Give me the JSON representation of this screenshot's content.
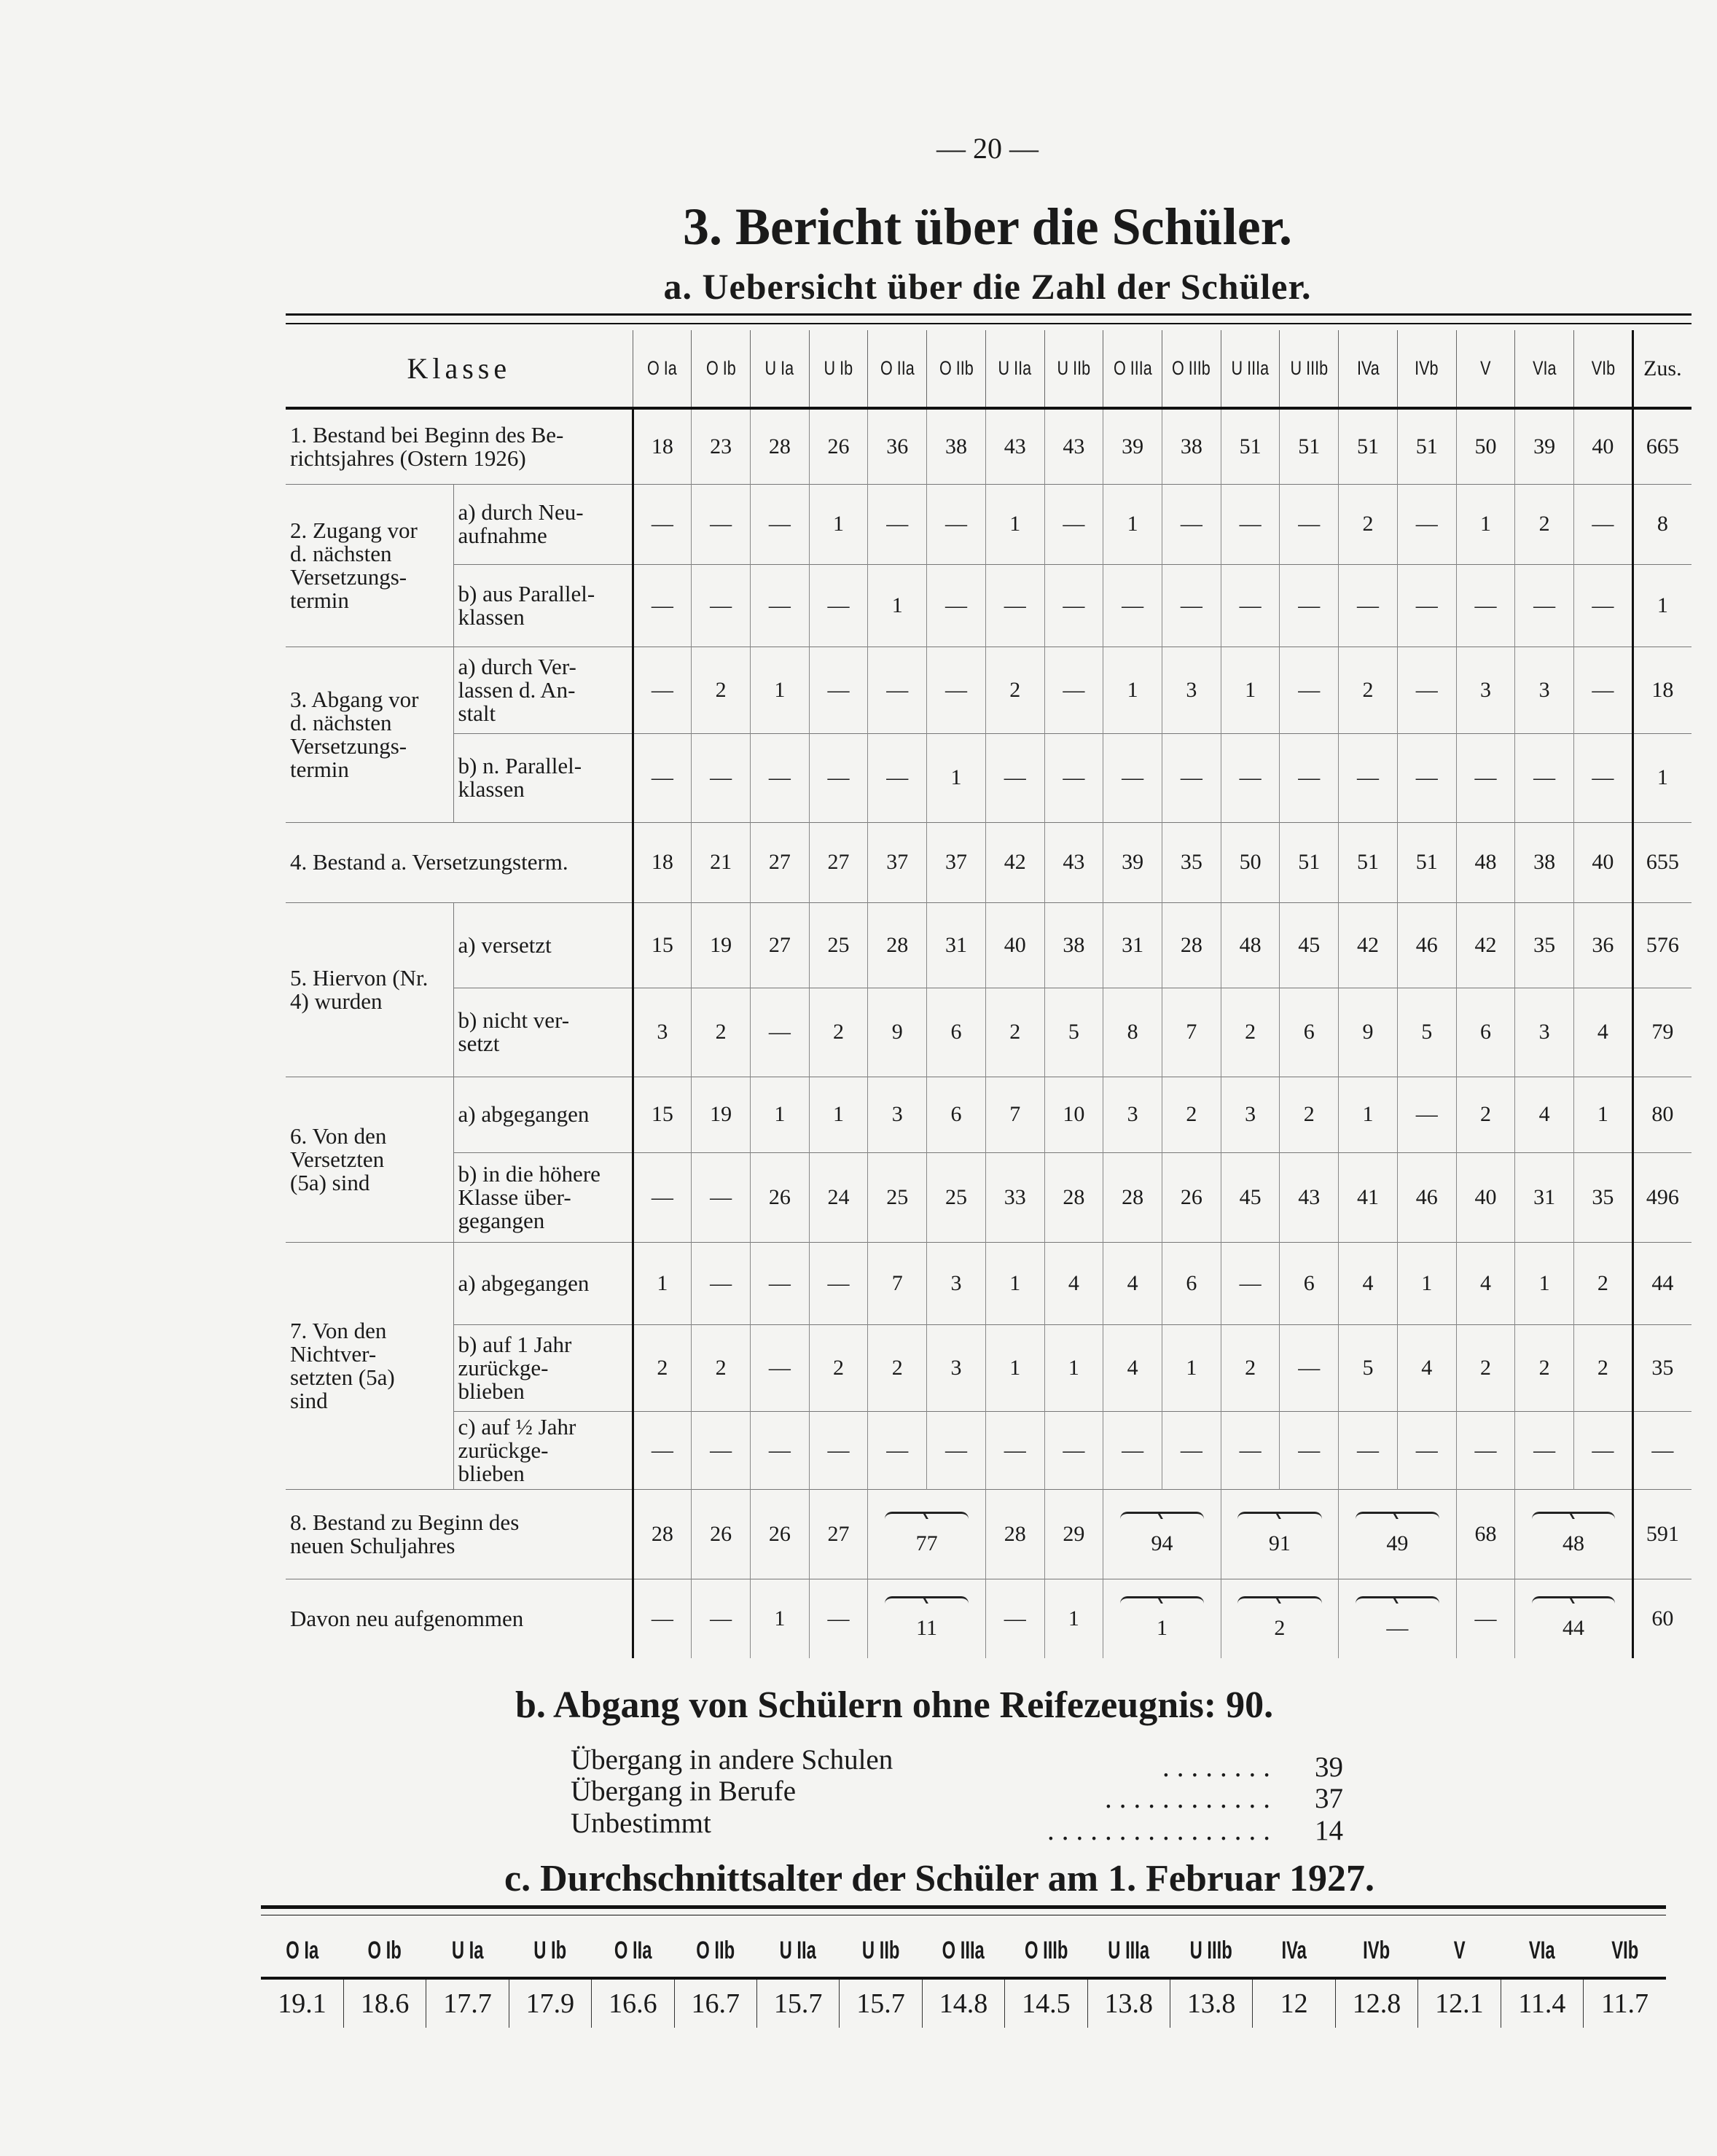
{
  "page_number": "— 20 —",
  "title": "3. Bericht über die Schüler.",
  "subtitle": "a. Uebersicht über die Zahl der Schüler.",
  "table_a": {
    "klasse_label": "Klasse",
    "classes": [
      "O Ia",
      "O Ib",
      "U Ia",
      "U Ib",
      "O IIa",
      "O IIb",
      "U IIa",
      "U IIb",
      "O IIIa",
      "O IIIb",
      "U IIIa",
      "U IIIb",
      "IVa",
      "IVb",
      "V",
      "VIa",
      "VIb"
    ],
    "total_label": "Zus.",
    "groups": [
      {
        "label": "1. Bestand bei Beginn des Be-\nrichtsjahres (Ostern 1926)",
        "rows": [
          {
            "sub": null,
            "values": [
              "18",
              "23",
              "28",
              "26",
              "36",
              "38",
              "43",
              "43",
              "39",
              "38",
              "51",
              "51",
              "51",
              "51",
              "50",
              "39",
              "40"
            ],
            "total": "665"
          }
        ]
      },
      {
        "label": "2. Zugang vor\nd. nächsten\nVersetzungs-\ntermin",
        "rows": [
          {
            "sub": "a) durch Neu-\naufnahme",
            "values": [
              "—",
              "—",
              "—",
              "1",
              "—",
              "—",
              "1",
              "—",
              "1",
              "—",
              "—",
              "—",
              "2",
              "—",
              "1",
              "2",
              "—"
            ],
            "total": "8"
          },
          {
            "sub": "b) aus Parallel-\nklassen",
            "values": [
              "—",
              "—",
              "—",
              "—",
              "1",
              "—",
              "—",
              "—",
              "—",
              "—",
              "—",
              "—",
              "—",
              "—",
              "—",
              "—",
              "—"
            ],
            "total": "1"
          }
        ]
      },
      {
        "label": "3. Abgang vor\nd. nächsten\nVersetzungs-\ntermin",
        "rows": [
          {
            "sub": "a) durch Ver-\nlassen d. An-\nstalt",
            "values": [
              "—",
              "2",
              "1",
              "—",
              "—",
              "—",
              "2",
              "—",
              "1",
              "3",
              "1",
              "—",
              "2",
              "—",
              "3",
              "3",
              "—"
            ],
            "total": "18"
          },
          {
            "sub": "b) n. Parallel-\nklassen",
            "values": [
              "—",
              "—",
              "—",
              "—",
              "—",
              "1",
              "—",
              "—",
              "—",
              "—",
              "—",
              "—",
              "—",
              "—",
              "—",
              "—",
              "—"
            ],
            "total": "1"
          }
        ]
      },
      {
        "label": "4. Bestand a. Versetzungsterm.",
        "rows": [
          {
            "sub": null,
            "values": [
              "18",
              "21",
              "27",
              "27",
              "37",
              "37",
              "42",
              "43",
              "39",
              "35",
              "50",
              "51",
              "51",
              "51",
              "48",
              "38",
              "40"
            ],
            "total": "655"
          }
        ]
      },
      {
        "label": "5. Hiervon (Nr.\n4) wurden",
        "rows": [
          {
            "sub": "a) versetzt",
            "values": [
              "15",
              "19",
              "27",
              "25",
              "28",
              "31",
              "40",
              "38",
              "31",
              "28",
              "48",
              "45",
              "42",
              "46",
              "42",
              "35",
              "36"
            ],
            "total": "576"
          },
          {
            "sub": "b) nicht ver-\nsetzt",
            "values": [
              "3",
              "2",
              "—",
              "2",
              "9",
              "6",
              "2",
              "5",
              "8",
              "7",
              "2",
              "6",
              "9",
              "5",
              "6",
              "3",
              "4"
            ],
            "total": "79"
          }
        ]
      },
      {
        "label": "6. Von den\nVersetzten\n(5a) sind",
        "rows": [
          {
            "sub": "a) abgegangen",
            "values": [
              "15",
              "19",
              "1",
              "1",
              "3",
              "6",
              "7",
              "10",
              "3",
              "2",
              "3",
              "2",
              "1",
              "—",
              "2",
              "4",
              "1"
            ],
            "total": "80"
          },
          {
            "sub": "b) in die höhere\nKlasse über-\ngegangen",
            "values": [
              "—",
              "—",
              "26",
              "24",
              "25",
              "25",
              "33",
              "28",
              "28",
              "26",
              "45",
              "43",
              "41",
              "46",
              "40",
              "31",
              "35"
            ],
            "total": "496"
          }
        ]
      },
      {
        "label": "7. Von den\nNichtver-\nsetzten (5a)\nsind",
        "rows": [
          {
            "sub": "a) abgegangen",
            "values": [
              "1",
              "—",
              "—",
              "—",
              "7",
              "3",
              "1",
              "4",
              "4",
              "6",
              "—",
              "6",
              "4",
              "1",
              "4",
              "1",
              "2"
            ],
            "total": "44"
          },
          {
            "sub": "b) auf 1 Jahr\nzurückge-\nblieben",
            "values": [
              "2",
              "2",
              "—",
              "2",
              "2",
              "3",
              "1",
              "1",
              "4",
              "1",
              "2",
              "—",
              "5",
              "4",
              "2",
              "2",
              "2"
            ],
            "total": "35"
          },
          {
            "sub": "c) auf ½ Jahr\nzurückge-\nblieben",
            "values": [
              "—",
              "—",
              "—",
              "—",
              "—",
              "—",
              "—",
              "—",
              "—",
              "—",
              "—",
              "—",
              "—",
              "—",
              "—",
              "—",
              "—"
            ],
            "total": "—"
          }
        ]
      },
      {
        "label": "8. Bestand zu Beginn des\nneuen Schuljahres",
        "rows": [
          {
            "sub": null,
            "values": [
              "28",
              "26",
              "26",
              "27",
              {
                "v": "77",
                "span": 2
              },
              "28",
              "29",
              {
                "v": "94",
                "span": 2
              },
              {
                "v": "91",
                "span": 2
              },
              {
                "v": "49",
                "span": 2
              },
              "68",
              {
                "v": "48",
                "span": 2
              }
            ],
            "total": "591"
          }
        ]
      },
      {
        "label": "Davon neu aufgenommen",
        "rows": [
          {
            "sub": null,
            "values": [
              "—",
              "—",
              "1",
              "—",
              {
                "v": "11",
                "span": 2
              },
              "—",
              "1",
              {
                "v": "1",
                "span": 2
              },
              {
                "v": "2",
                "span": 2
              },
              {
                "v": "—",
                "span": 2
              },
              "—",
              {
                "v": "44",
                "span": 2
              }
            ],
            "total": "60"
          }
        ]
      }
    ]
  },
  "section_b": {
    "heading": "b. Abgang von Schülern ohne Reifezeugnis: 90.",
    "items": [
      {
        "label": "Übergang in andere Schulen",
        "value": "39"
      },
      {
        "label": "Übergang in Berufe",
        "value": "37"
      },
      {
        "label": "Unbestimmt",
        "value": "14"
      }
    ]
  },
  "section_c": {
    "heading": "c. Durchschnittsalter der Schüler am 1. Februar 1927.",
    "classes": [
      "O Ia",
      "O Ib",
      "U Ia",
      "U Ib",
      "O IIa",
      "O IIb",
      "U IIa",
      "U IIb",
      "O IIIa",
      "O IIIb",
      "U IIIa",
      "U IIIb",
      "IVa",
      "IVb",
      "V",
      "VIa",
      "VIb"
    ],
    "ages": [
      "19.1",
      "18.6",
      "17.7",
      "17.9",
      "16.6",
      "16.7",
      "15.7",
      "15.7",
      "14.8",
      "14.5",
      "13.8",
      "13.8",
      "12",
      "12.8",
      "12.1",
      "11.4",
      "11.7"
    ]
  }
}
